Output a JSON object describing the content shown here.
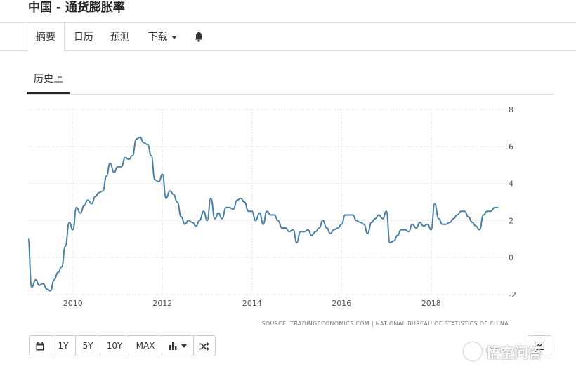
{
  "header": {
    "title": "中国 - 通货膨胀率"
  },
  "nav": {
    "tabs": [
      {
        "label": "摘要",
        "active": true
      },
      {
        "label": "日历"
      },
      {
        "label": "预测"
      },
      {
        "label": "下载"
      }
    ],
    "bell_icon": "bell-icon"
  },
  "subtabs": {
    "history": "历史上"
  },
  "chart_data": {
    "type": "line",
    "title": "",
    "xlabel": "",
    "ylabel": "",
    "xlim": [
      2009.0,
      2019.73
    ],
    "ylim": [
      -2,
      8
    ],
    "x_ticks": [
      2010,
      2012,
      2014,
      2016,
      2018
    ],
    "x_tick_labels": [
      "2010",
      "2012",
      "2014",
      "2016",
      "2018"
    ],
    "y_ticks": [
      8,
      6,
      4,
      2,
      0,
      -2
    ],
    "y_axis_side": "right",
    "grid": true,
    "line_color": "#4a7fa6",
    "source": "SOURCE: TRADINGECONOMICS.COM  |  NATIONAL BUREAU OF STATISTICS OF CHINA",
    "series": [
      {
        "x": [
          2009.0,
          2009.08,
          2009.17,
          2009.25,
          2009.33,
          2009.42,
          2009.5,
          2009.58,
          2009.67,
          2009.75,
          2009.83,
          2009.92,
          2010.0,
          2010.08,
          2010.17,
          2010.25,
          2010.33,
          2010.42,
          2010.5,
          2010.58,
          2010.67,
          2010.75,
          2010.83,
          2010.92,
          2011.0,
          2011.08,
          2011.17,
          2011.25,
          2011.33,
          2011.42,
          2011.5,
          2011.58,
          2011.67,
          2011.75,
          2011.83,
          2011.92,
          2012.0,
          2012.08,
          2012.17,
          2012.25,
          2012.33,
          2012.42,
          2012.5,
          2012.58,
          2012.67,
          2012.75,
          2012.83,
          2012.92,
          2013.0,
          2013.08,
          2013.17,
          2013.25,
          2013.33,
          2013.42,
          2013.5,
          2013.58,
          2013.67,
          2013.75,
          2013.83,
          2013.92,
          2014.0,
          2014.08,
          2014.17,
          2014.25,
          2014.33,
          2014.42,
          2014.5,
          2014.58,
          2014.67,
          2014.75,
          2014.83,
          2014.92,
          2015.0,
          2015.08,
          2015.17,
          2015.25,
          2015.33,
          2015.42,
          2015.5,
          2015.58,
          2015.67,
          2015.75,
          2015.83,
          2015.92,
          2016.0,
          2016.08,
          2016.17,
          2016.25,
          2016.33,
          2016.42,
          2016.5,
          2016.58,
          2016.67,
          2016.75,
          2016.83,
          2016.92,
          2017.0,
          2017.08,
          2017.17,
          2017.25,
          2017.33,
          2017.42,
          2017.5,
          2017.58,
          2017.67,
          2017.75,
          2017.83,
          2017.92,
          2018.0,
          2018.08,
          2018.17,
          2018.25,
          2018.33,
          2018.42,
          2018.5,
          2018.58,
          2018.67,
          2018.75,
          2018.83,
          2018.92,
          2019.0,
          2019.08,
          2019.17,
          2019.25,
          2019.33,
          2019.42,
          2019.5
        ],
        "values": [
          1.0,
          -1.6,
          -1.2,
          -1.5,
          -1.4,
          -1.7,
          -1.8,
          -1.2,
          -0.8,
          -0.5,
          0.6,
          1.9,
          1.5,
          2.7,
          2.4,
          2.8,
          3.1,
          2.9,
          3.3,
          3.5,
          3.6,
          4.4,
          5.1,
          4.6,
          4.9,
          4.9,
          5.4,
          5.3,
          5.5,
          6.4,
          6.5,
          6.2,
          6.1,
          5.5,
          4.2,
          4.1,
          4.5,
          3.2,
          3.6,
          3.4,
          3.0,
          2.2,
          1.8,
          2.0,
          1.9,
          1.7,
          2.0,
          2.5,
          2.0,
          3.2,
          2.1,
          2.4,
          2.1,
          2.7,
          2.7,
          2.6,
          3.1,
          3.2,
          3.0,
          2.5,
          2.5,
          2.0,
          2.4,
          1.8,
          2.5,
          2.3,
          2.3,
          2.0,
          1.6,
          1.6,
          1.4,
          1.5,
          0.8,
          1.4,
          1.4,
          1.5,
          1.2,
          1.4,
          1.6,
          2.0,
          1.6,
          1.3,
          1.5,
          1.6,
          1.8,
          2.3,
          2.3,
          2.3,
          2.0,
          1.9,
          1.8,
          1.3,
          1.9,
          2.1,
          2.3,
          2.1,
          2.5,
          0.8,
          0.9,
          1.2,
          1.5,
          1.5,
          1.4,
          1.8,
          1.6,
          1.9,
          1.7,
          1.8,
          1.5,
          2.9,
          2.1,
          1.8,
          1.8,
          1.9,
          2.1,
          2.3,
          2.5,
          2.5,
          2.2,
          1.9,
          1.7,
          1.5,
          2.3,
          2.5,
          2.5,
          2.7,
          2.7
        ]
      }
    ]
  },
  "toolbar": {
    "buttons": [
      "1Y",
      "5Y",
      "10Y",
      "MAX"
    ]
  },
  "watermark": {
    "text": "悟空问答"
  }
}
